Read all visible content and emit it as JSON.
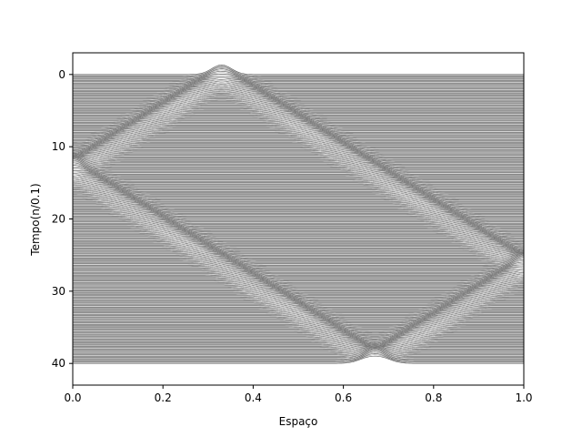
{
  "chart_data": {
    "type": "line",
    "title": "",
    "xlabel": "Espaço",
    "ylabel": "Tempo(n/0.1)",
    "xlim": [
      0.0,
      1.0
    ],
    "ylim": [
      43,
      -3
    ],
    "y_inverted": true,
    "grid": false,
    "legend": "none",
    "x_ticks": [
      0.0,
      0.2,
      0.4,
      0.6,
      0.8,
      1.0
    ],
    "x_tick_labels": [
      "0.0",
      "0.2",
      "0.4",
      "0.6",
      "0.8",
      "1.0"
    ],
    "y_ticks": [
      0,
      10,
      20,
      30,
      40
    ],
    "y_tick_labels": [
      "0",
      "10",
      "20",
      "30",
      "40"
    ],
    "line_color": "#808080",
    "background_color": "#ffffff",
    "waterfall": {
      "time_start": 0,
      "time_end": 40,
      "time_step": 0.1,
      "pulse_speed": 0.0254,
      "pulse_start_x": 0.33,
      "pulse_width": 0.022,
      "pulse_amplitude": 0.55
    }
  }
}
